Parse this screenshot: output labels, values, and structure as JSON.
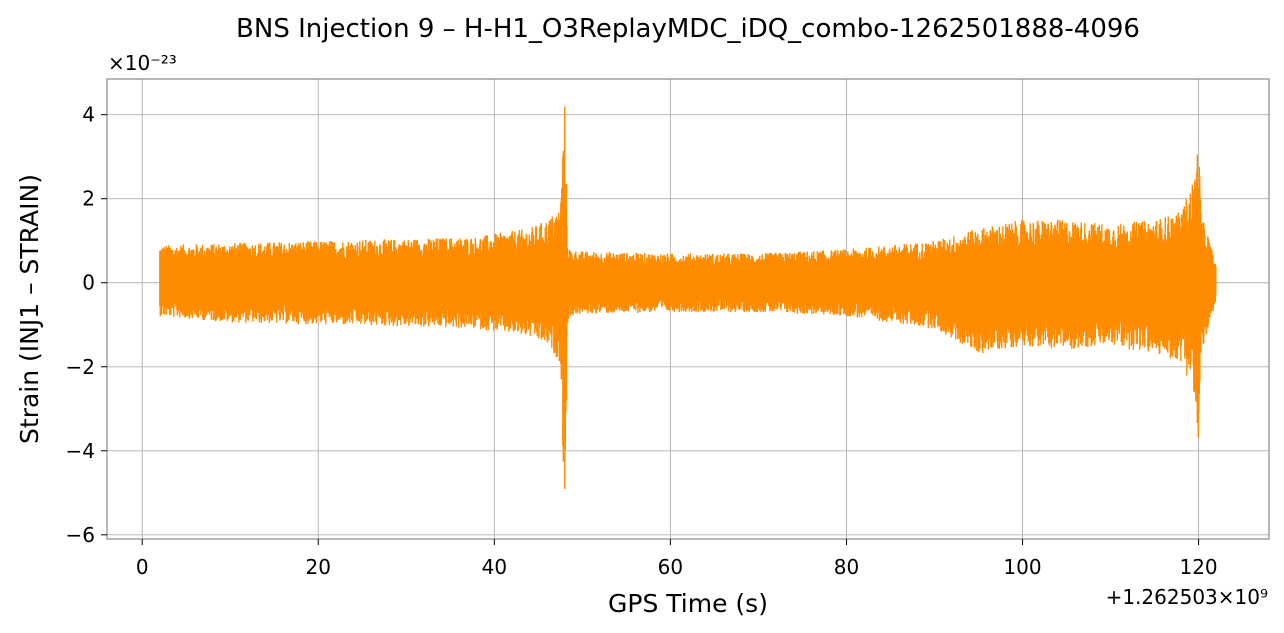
{
  "chart_data": {
    "type": "line",
    "title": "BNS Injection 9 – H-H1_O3ReplayMDC_iDQ_combo-1262501888-4096",
    "xlabel": "GPS Time (s)",
    "ylabel": "Strain (INJ1 – STRAIN)",
    "x_offset_label": "+1.262503×10⁹",
    "y_exponent_label": "×10⁻²³",
    "xlim": [
      -4,
      128
    ],
    "ylim": [
      -6.1,
      4.85
    ],
    "x_ticks": [
      0,
      20,
      40,
      60,
      80,
      100,
      120
    ],
    "x_tick_labels": [
      "0",
      "20",
      "40",
      "60",
      "80",
      "100",
      "120"
    ],
    "y_ticks": [
      -6,
      -4,
      -2,
      0,
      2,
      4
    ],
    "y_tick_labels": [
      "−6",
      "−4",
      "−2",
      "0",
      "2",
      "4"
    ],
    "grid": true,
    "legend": "none",
    "series": [
      {
        "color": "#ff8c00",
        "x_range": [
          2,
          122
        ],
        "envelope_x": [
          2,
          10,
          20,
          30,
          38,
          44,
          46,
          47.5,
          48.0,
          48.3,
          48.6,
          50,
          60,
          70,
          80,
          90,
          95,
          100,
          105,
          110,
          115,
          118,
          119.5,
          120.0,
          120.3,
          121,
          122
        ],
        "envelope_upper": [
          0.9,
          0.95,
          1.0,
          1.05,
          1.1,
          1.3,
          1.5,
          1.8,
          4.4,
          1.0,
          0.8,
          0.75,
          0.7,
          0.7,
          0.8,
          1.0,
          1.3,
          1.5,
          1.5,
          1.4,
          1.5,
          1.7,
          2.5,
          3.5,
          1.6,
          1.2,
          0.4
        ],
        "envelope_lower": [
          -0.8,
          -0.95,
          -1.0,
          -1.05,
          -1.1,
          -1.3,
          -1.5,
          -1.9,
          -5.55,
          -1.1,
          -0.8,
          -0.75,
          -0.7,
          -0.7,
          -0.8,
          -1.1,
          -1.7,
          -1.5,
          -1.6,
          -1.5,
          -1.7,
          -1.9,
          -2.6,
          -4.35,
          -1.7,
          -1.2,
          -0.5
        ]
      }
    ]
  }
}
